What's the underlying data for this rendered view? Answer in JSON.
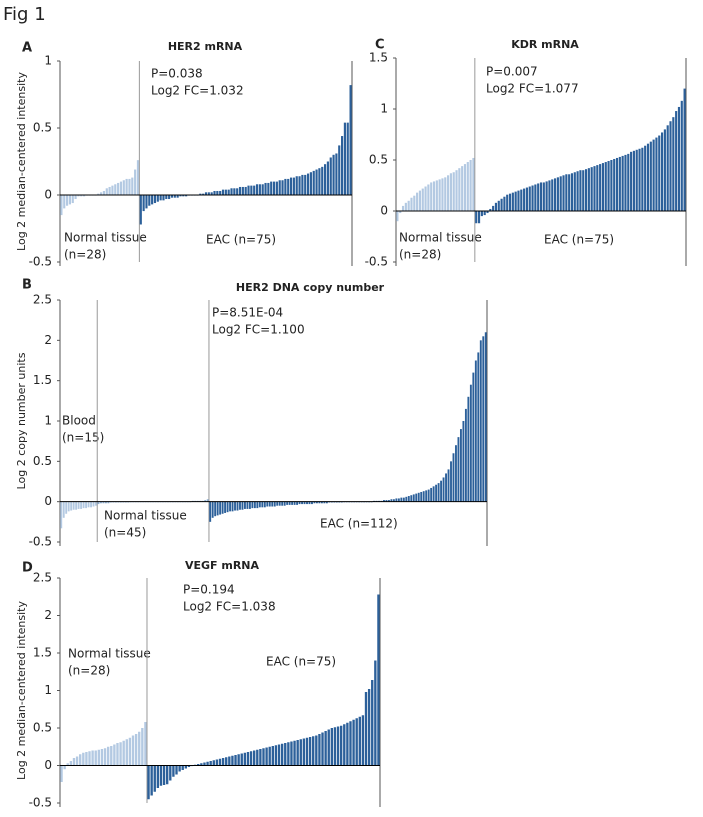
{
  "figure_label": "Fig 1",
  "chart_data": [
    {
      "type": "bar",
      "panel": "A",
      "title": "HER2 mRNA",
      "ylabel": "Log 2 median-centered intensity",
      "ylim": [
        -0.5,
        1
      ],
      "yticks": [
        -0.5,
        0,
        0.5,
        1
      ],
      "annotations": [
        "P=0.038",
        "Log2 FC=1.032"
      ],
      "groups": [
        {
          "label": [
            "Normal tissue",
            "(n=28)"
          ],
          "color": "#b3c9e2",
          "values": [
            -0.15,
            -0.1,
            -0.08,
            -0.07,
            -0.06,
            -0.03,
            -0.01,
            -0.01,
            -0.01,
            0,
            0,
            0,
            0,
            0.01,
            0.02,
            0.03,
            0.05,
            0.06,
            0.07,
            0.08,
            0.09,
            0.1,
            0.11,
            0.12,
            0.12,
            0.13,
            0.19,
            0.26
          ]
        },
        {
          "label": [
            "EAC (n=75)"
          ],
          "color": "#2c609a",
          "values": [
            -0.22,
            -0.12,
            -0.1,
            -0.08,
            -0.07,
            -0.06,
            -0.05,
            -0.04,
            -0.04,
            -0.03,
            -0.03,
            -0.02,
            -0.02,
            -0.02,
            -0.01,
            -0.01,
            -0.01,
            0,
            0,
            0,
            0,
            0.01,
            0.01,
            0.02,
            0.02,
            0.02,
            0.03,
            0.03,
            0.03,
            0.04,
            0.04,
            0.04,
            0.05,
            0.05,
            0.05,
            0.06,
            0.06,
            0.06,
            0.07,
            0.07,
            0.07,
            0.08,
            0.08,
            0.08,
            0.09,
            0.09,
            0.1,
            0.1,
            0.1,
            0.11,
            0.11,
            0.12,
            0.12,
            0.13,
            0.13,
            0.14,
            0.14,
            0.15,
            0.15,
            0.16,
            0.17,
            0.18,
            0.19,
            0.2,
            0.21,
            0.23,
            0.25,
            0.28,
            0.3,
            0.31,
            0.37,
            0.44,
            0.54,
            0.54,
            0.82
          ]
        }
      ]
    },
    {
      "type": "bar",
      "panel": "B",
      "title": "HER2 DNA copy number",
      "ylabel": "Log 2 copy number units",
      "ylim": [
        -0.5,
        2.5
      ],
      "yticks": [
        -0.5,
        0,
        0.5,
        1,
        1.5,
        2,
        2.5
      ],
      "annotations": [
        "P=8.51E-04",
        "Log2 FC=1.100"
      ],
      "groups": [
        {
          "label": [
            "Blood",
            "(n=15)"
          ],
          "color": "#b3c9e2",
          "values": [
            -0.33,
            -0.2,
            -0.15,
            -0.12,
            -0.11,
            -0.1,
            -0.1,
            -0.09,
            -0.09,
            -0.08,
            -0.08,
            -0.07,
            -0.07,
            -0.06,
            -0.05
          ]
        },
        {
          "label": [
            "Normal tissue",
            "(n=45)"
          ],
          "color": "#8fb0d4",
          "values": [
            -0.03,
            -0.02,
            -0.02,
            -0.02,
            -0.02,
            -0.01,
            -0.01,
            -0.01,
            -0.01,
            -0.01,
            -0.01,
            -0.01,
            -0.01,
            0,
            0,
            0,
            0,
            0,
            0,
            0,
            0,
            0,
            0,
            0,
            0,
            0,
            0,
            0,
            0,
            0,
            0,
            0,
            0,
            0,
            0,
            0,
            0,
            0,
            0.01,
            0.01,
            0.01,
            0.01,
            0.01,
            0.02,
            0.03
          ]
        },
        {
          "label": [
            "EAC (n=112)"
          ],
          "color": "#2c609a",
          "values": [
            -0.25,
            -0.2,
            -0.18,
            -0.17,
            -0.16,
            -0.15,
            -0.14,
            -0.13,
            -0.12,
            -0.12,
            -0.11,
            -0.11,
            -0.1,
            -0.1,
            -0.09,
            -0.09,
            -0.09,
            -0.08,
            -0.08,
            -0.08,
            -0.07,
            -0.07,
            -0.07,
            -0.06,
            -0.06,
            -0.06,
            -0.06,
            -0.05,
            -0.05,
            -0.05,
            -0.05,
            -0.04,
            -0.04,
            -0.04,
            -0.04,
            -0.04,
            -0.03,
            -0.03,
            -0.03,
            -0.03,
            -0.03,
            -0.03,
            -0.02,
            -0.02,
            -0.02,
            -0.02,
            -0.02,
            -0.02,
            -0.01,
            -0.01,
            -0.01,
            -0.01,
            -0.01,
            -0.01,
            0,
            0,
            0,
            0,
            0,
            0,
            0,
            0,
            0,
            0,
            0,
            0,
            0.01,
            0.01,
            0.01,
            0.01,
            0.02,
            0.02,
            0.02,
            0.03,
            0.03,
            0.04,
            0.04,
            0.05,
            0.05,
            0.06,
            0.07,
            0.08,
            0.09,
            0.1,
            0.11,
            0.12,
            0.13,
            0.14,
            0.15,
            0.17,
            0.19,
            0.21,
            0.23,
            0.26,
            0.3,
            0.35,
            0.4,
            0.5,
            0.6,
            0.7,
            0.8,
            0.9,
            1.0,
            1.15,
            1.3,
            1.45,
            1.6,
            1.75,
            1.85,
            2.0,
            2.05,
            2.1
          ]
        }
      ]
    },
    {
      "type": "bar",
      "panel": "C",
      "title": "KDR mRNA",
      "ylim": [
        -0.5,
        1.5
      ],
      "yticks": [
        -0.5,
        0,
        0.5,
        1,
        1.5
      ],
      "annotations": [
        "P=0.007",
        "Log2 FC=1.077"
      ],
      "groups": [
        {
          "label": [
            "Normal tissue",
            "(n=28)"
          ],
          "color": "#b3c9e2",
          "values": [
            -0.1,
            -0.02,
            0.05,
            0.08,
            0.1,
            0.13,
            0.15,
            0.18,
            0.2,
            0.22,
            0.24,
            0.26,
            0.28,
            0.29,
            0.3,
            0.31,
            0.32,
            0.33,
            0.35,
            0.37,
            0.38,
            0.4,
            0.42,
            0.44,
            0.46,
            0.48,
            0.5,
            0.52
          ]
        },
        {
          "label": [
            "EAC (n=75)"
          ],
          "color": "#2c609a",
          "values": [
            -0.12,
            -0.12,
            -0.05,
            -0.04,
            -0.02,
            0.02,
            0.05,
            0.08,
            0.1,
            0.12,
            0.14,
            0.16,
            0.17,
            0.18,
            0.19,
            0.2,
            0.21,
            0.22,
            0.23,
            0.24,
            0.25,
            0.26,
            0.27,
            0.28,
            0.28,
            0.29,
            0.3,
            0.31,
            0.32,
            0.33,
            0.34,
            0.35,
            0.36,
            0.36,
            0.37,
            0.38,
            0.39,
            0.4,
            0.4,
            0.41,
            0.42,
            0.43,
            0.44,
            0.45,
            0.46,
            0.47,
            0.48,
            0.49,
            0.5,
            0.51,
            0.52,
            0.53,
            0.54,
            0.55,
            0.56,
            0.58,
            0.59,
            0.6,
            0.61,
            0.62,
            0.64,
            0.66,
            0.68,
            0.7,
            0.72,
            0.74,
            0.77,
            0.8,
            0.84,
            0.88,
            0.92,
            0.98,
            1.02,
            1.08,
            1.2
          ]
        }
      ]
    },
    {
      "type": "bar",
      "panel": "D",
      "title": "VEGF mRNA",
      "ylabel": "Log 2 median-centered intensity",
      "ylim": [
        -0.5,
        2.5
      ],
      "yticks": [
        -0.5,
        0,
        0.5,
        1,
        1.5,
        2,
        2.5
      ],
      "annotations": [
        "P=0.194",
        "Log2 FC=1.038"
      ],
      "groups": [
        {
          "label": [
            "Normal tissue",
            "(n=28)"
          ],
          "color": "#b3c9e2",
          "values": [
            -0.22,
            -0.05,
            0.03,
            0.06,
            0.1,
            0.12,
            0.15,
            0.17,
            0.18,
            0.19,
            0.2,
            0.2,
            0.21,
            0.22,
            0.23,
            0.25,
            0.26,
            0.28,
            0.3,
            0.31,
            0.33,
            0.35,
            0.37,
            0.4,
            0.42,
            0.45,
            0.5,
            0.58
          ]
        },
        {
          "label": [
            "EAC (n=75)"
          ],
          "color": "#2c609a",
          "values": [
            -0.45,
            -0.4,
            -0.35,
            -0.3,
            -0.27,
            -0.26,
            -0.25,
            -0.2,
            -0.15,
            -0.12,
            -0.08,
            -0.06,
            -0.04,
            -0.02,
            0,
            0.01,
            0.02,
            0.03,
            0.04,
            0.05,
            0.06,
            0.07,
            0.08,
            0.09,
            0.1,
            0.11,
            0.12,
            0.13,
            0.14,
            0.15,
            0.16,
            0.17,
            0.18,
            0.19,
            0.2,
            0.21,
            0.22,
            0.23,
            0.24,
            0.25,
            0.26,
            0.27,
            0.28,
            0.29,
            0.3,
            0.31,
            0.32,
            0.33,
            0.34,
            0.35,
            0.36,
            0.37,
            0.38,
            0.39,
            0.4,
            0.42,
            0.44,
            0.46,
            0.48,
            0.5,
            0.51,
            0.52,
            0.53,
            0.55,
            0.57,
            0.59,
            0.61,
            0.63,
            0.65,
            0.67,
            0.98,
            1.02,
            1.14,
            1.4,
            2.28
          ]
        }
      ]
    }
  ]
}
